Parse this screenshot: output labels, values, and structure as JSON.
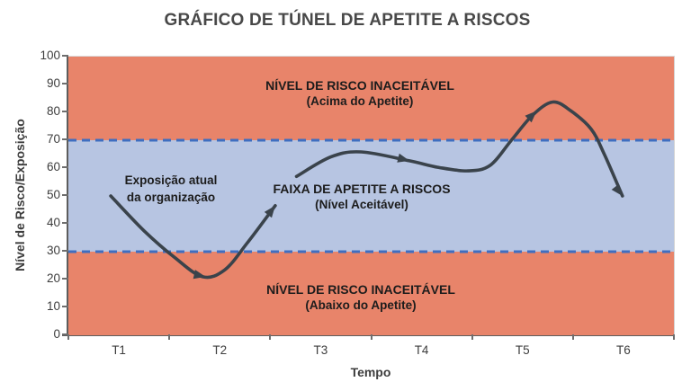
{
  "chart_data": {
    "type": "line",
    "title": "GRÁFICO DE TÚNEL DE APETITE A RISCOS",
    "xlabel": "Tempo",
    "ylabel": "Nível de Risco/Exposição",
    "x_categories": [
      "T1",
      "T2",
      "T3",
      "T4",
      "T5",
      "T6"
    ],
    "y_ticks": [
      0,
      10,
      20,
      30,
      40,
      50,
      60,
      70,
      80,
      90,
      100
    ],
    "ylim": [
      0,
      100
    ],
    "grid": false,
    "legend": "none",
    "bands": [
      {
        "label_line1": "NÍVEL DE RISCO INACEITÁVEL",
        "label_line2": "(Acima do Apetite)",
        "from": 70,
        "to": 100,
        "color": "#E8846A"
      },
      {
        "label_line1": "FAIXA DE APETITE A RISCOS",
        "label_line2": "(Nível Aceitável)",
        "from": 30,
        "to": 70,
        "color": "#B7C5E2"
      },
      {
        "label_line1": "NÍVEL DE RISCO INACEITÁVEL",
        "label_line2": "(Abaixo do Apetite)",
        "from": 0,
        "to": 30,
        "color": "#E8846A"
      }
    ],
    "thresholds": {
      "values": [
        70,
        30
      ],
      "color": "#3F6EC0",
      "style": "dashed"
    },
    "annotation": {
      "line1": "Exposição atual",
      "line2": "da organização"
    },
    "series": [
      {
        "name": "Exposição atual da organização",
        "color": "#3A434B",
        "approx_values_at_categories": [
          50,
          21,
          64,
          59,
          79,
          50
        ],
        "segments": [
          [
            [
              0.42,
              50
            ],
            [
              0.75,
              37.5
            ],
            [
              1.05,
              28
            ],
            [
              1.33,
              21
            ],
            [
              1.55,
              23.5
            ],
            [
              1.77,
              33
            ],
            [
              2.05,
              46.5
            ]
          ],
          [
            [
              2.26,
              57
            ],
            [
              2.6,
              64
            ],
            [
              2.9,
              65.8
            ],
            [
              3.38,
              62.6
            ],
            [
              3.66,
              60.3
            ],
            [
              3.96,
              59
            ],
            [
              4.18,
              61
            ],
            [
              4.39,
              70
            ],
            [
              4.6,
              79
            ],
            [
              4.8,
              83.7
            ],
            [
              4.98,
              80.5
            ],
            [
              5.18,
              74
            ],
            [
              5.31,
              65
            ],
            [
              5.49,
              50
            ]
          ]
        ],
        "arrows": [
          {
            "t": 1.36,
            "v": 21.0,
            "angle": 12
          },
          {
            "t": 2.05,
            "v": 46.5,
            "angle": -52
          },
          {
            "t": 3.38,
            "v": 62.6,
            "angle": 14
          },
          {
            "t": 4.64,
            "v": 80.5,
            "angle": -44
          },
          {
            "t": 5.49,
            "v": 50.0,
            "angle": 52
          }
        ]
      }
    ]
  }
}
